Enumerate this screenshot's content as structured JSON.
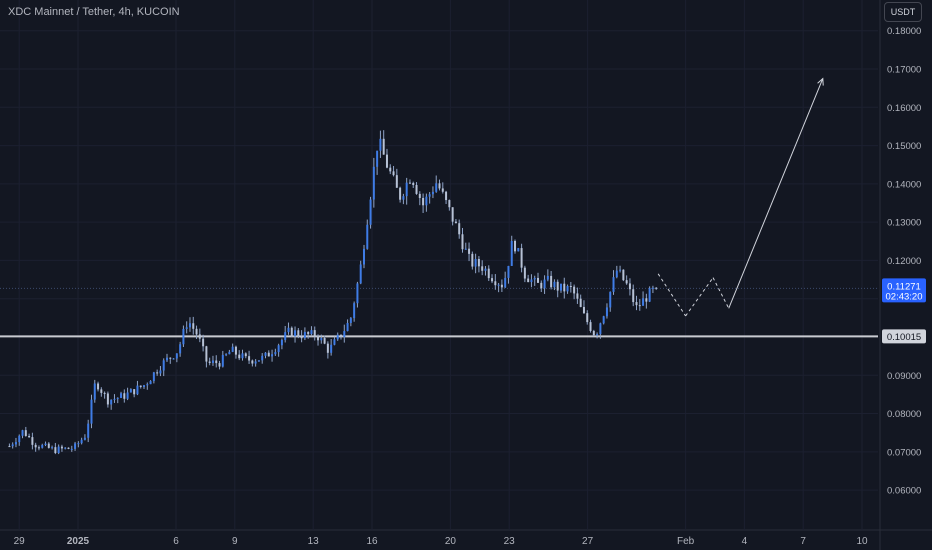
{
  "header": {
    "title": "XDC Mainnet / Tether, 4h, KUCOIN",
    "currency": "USDT"
  },
  "colors": {
    "background": "#131722",
    "grid": "#1c2030",
    "candle": "#3f7ce6",
    "wick": "#8fa4c8",
    "axis_text": "#b2b5be",
    "level_line": "#c9cbd1",
    "price_badge": "#2962ff",
    "projection": "#d1d4dc"
  },
  "chart_data": {
    "type": "candlestick",
    "timeframe": "4h",
    "ylim": [
      0.0535,
      0.1815
    ],
    "y_ticks": [
      "0.18000",
      "0.17000",
      "0.16000",
      "0.15000",
      "0.14000",
      "0.13000",
      "0.12000",
      "0.11000",
      "0.10000",
      "0.09000",
      "0.08000",
      "0.07000",
      "0.06000"
    ],
    "x_ticks": [
      {
        "label": "29",
        "day": -3
      },
      {
        "label": "2025",
        "day": 0
      },
      {
        "label": "6",
        "day": 5
      },
      {
        "label": "9",
        "day": 8
      },
      {
        "label": "13",
        "day": 12
      },
      {
        "label": "16",
        "day": 15
      },
      {
        "label": "20",
        "day": 19
      },
      {
        "label": "23",
        "day": 22
      },
      {
        "label": "27",
        "day": 26
      },
      {
        "label": "Feb",
        "day": 31
      },
      {
        "label": "4",
        "day": 34
      },
      {
        "label": "7",
        "day": 37
      },
      {
        "label": "10",
        "day": 40
      }
    ],
    "current_price": {
      "value": "0.11271",
      "countdown": "02:43:20",
      "price": 0.11271
    },
    "horizontal_level": {
      "value": "0.10015",
      "price": 0.10015
    },
    "trend_path": [
      [
        -3.5,
        0.0715
      ],
      [
        -2.8,
        0.0755
      ],
      [
        -2.2,
        0.072
      ],
      [
        -1.2,
        0.0705
      ],
      [
        -0.2,
        0.071
      ],
      [
        0.4,
        0.0745
      ],
      [
        0.9,
        0.0885
      ],
      [
        1.5,
        0.0835
      ],
      [
        2.3,
        0.0845
      ],
      [
        3.4,
        0.0875
      ],
      [
        4.2,
        0.0925
      ],
      [
        5.1,
        0.0965
      ],
      [
        5.6,
        0.1045
      ],
      [
        6.1,
        0.1005
      ],
      [
        6.6,
        0.093
      ],
      [
        7.3,
        0.0935
      ],
      [
        7.8,
        0.0965
      ],
      [
        8.6,
        0.094
      ],
      [
        9.5,
        0.0945
      ],
      [
        10.1,
        0.0975
      ],
      [
        10.8,
        0.1015
      ],
      [
        11.5,
        0.1005
      ],
      [
        12.2,
        0.1005
      ],
      [
        12.8,
        0.0965
      ],
      [
        13.4,
        0.1005
      ],
      [
        13.9,
        0.1045
      ],
      [
        14.4,
        0.1175
      ],
      [
        14.9,
        0.1365
      ],
      [
        15.3,
        0.1515
      ],
      [
        15.8,
        0.1445
      ],
      [
        16.4,
        0.1365
      ],
      [
        17.0,
        0.1425
      ],
      [
        17.6,
        0.1345
      ],
      [
        18.3,
        0.1405
      ],
      [
        18.9,
        0.1335
      ],
      [
        19.4,
        0.1275
      ],
      [
        20.0,
        0.1195
      ],
      [
        20.6,
        0.1185
      ],
      [
        21.2,
        0.1155
      ],
      [
        21.7,
        0.1135
      ],
      [
        22.2,
        0.1255
      ],
      [
        22.8,
        0.1165
      ],
      [
        23.4,
        0.1135
      ],
      [
        24.0,
        0.1145
      ],
      [
        24.6,
        0.1125
      ],
      [
        25.2,
        0.1125
      ],
      [
        25.8,
        0.1055
      ],
      [
        26.4,
        0.1005
      ],
      [
        26.9,
        0.1075
      ],
      [
        27.5,
        0.1175
      ],
      [
        28.0,
        0.1135
      ],
      [
        28.5,
        0.1075
      ],
      [
        29.0,
        0.1105
      ],
      [
        29.5,
        0.1127
      ]
    ],
    "candle_count": 198,
    "projection_path": [
      [
        29.6,
        0.1165
      ],
      [
        31.0,
        0.1055
      ],
      [
        32.4,
        0.1155
      ],
      [
        33.2,
        0.1075
      ],
      [
        38.0,
        0.1675
      ]
    ]
  }
}
